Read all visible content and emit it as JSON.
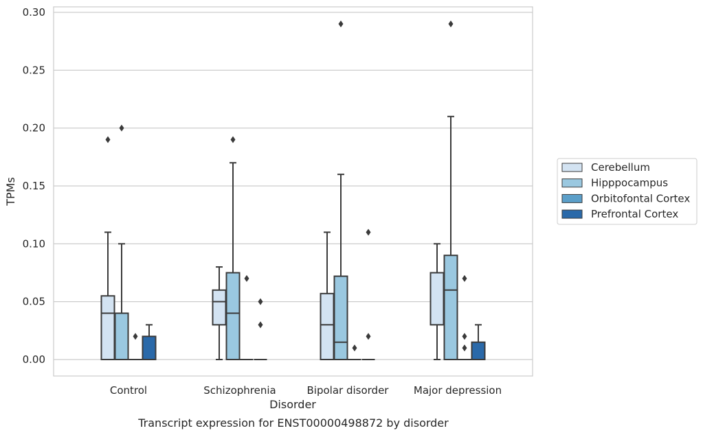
{
  "chart_data": {
    "type": "box",
    "caption": "Transcript expression for ENST00000498872 by disorder",
    "xlabel": "Disorder",
    "ylabel": "TPMs",
    "ylim": [
      -0.014,
      0.305
    ],
    "yticks": [
      "0.00",
      "0.05",
      "0.10",
      "0.15",
      "0.20",
      "0.25",
      "0.30"
    ],
    "grid": true,
    "legend_position": "right",
    "categories": [
      "Control",
      "Schizophrenia",
      "Bipolar disorder",
      "Major depression"
    ],
    "series": [
      {
        "name": "Cerebellum",
        "color": "#d3e3f2",
        "boxes": [
          {
            "whisker_low": 0.0,
            "q1": 0.0,
            "median": 0.04,
            "q3": 0.055,
            "whisker_high": 0.11,
            "outliers": [
              0.19
            ]
          },
          {
            "whisker_low": 0.0,
            "q1": 0.03,
            "median": 0.05,
            "q3": 0.06,
            "whisker_high": 0.08,
            "outliers": []
          },
          {
            "whisker_low": 0.0,
            "q1": 0.0,
            "median": 0.03,
            "q3": 0.057,
            "whisker_high": 0.11,
            "outliers": []
          },
          {
            "whisker_low": 0.0,
            "q1": 0.03,
            "median": 0.075,
            "q3": 0.075,
            "whisker_high": 0.1,
            "outliers": []
          }
        ]
      },
      {
        "name": "Hipppocampus",
        "color": "#9ac8e0",
        "boxes": [
          {
            "whisker_low": 0.0,
            "q1": 0.0,
            "median": 0.04,
            "q3": 0.04,
            "whisker_high": 0.1,
            "outliers": [
              0.2
            ]
          },
          {
            "whisker_low": 0.0,
            "q1": 0.0,
            "median": 0.04,
            "q3": 0.075,
            "whisker_high": 0.17,
            "outliers": [
              0.19
            ]
          },
          {
            "whisker_low": 0.0,
            "q1": 0.0,
            "median": 0.015,
            "q3": 0.072,
            "whisker_high": 0.16,
            "outliers": [
              0.29
            ]
          },
          {
            "whisker_low": 0.0,
            "q1": 0.0,
            "median": 0.06,
            "q3": 0.09,
            "whisker_high": 0.21,
            "outliers": [
              0.29
            ]
          }
        ]
      },
      {
        "name": "Orbitofontal Cortex",
        "color": "#5b9fc9",
        "boxes": [
          {
            "whisker_low": 0.0,
            "q1": 0.0,
            "median": 0.0,
            "q3": 0.0,
            "whisker_high": 0.0,
            "outliers": [
              0.02
            ]
          },
          {
            "whisker_low": 0.0,
            "q1": 0.0,
            "median": 0.0,
            "q3": 0.0,
            "whisker_high": 0.0,
            "outliers": [
              0.07
            ]
          },
          {
            "whisker_low": 0.0,
            "q1": 0.0,
            "median": 0.0,
            "q3": 0.0,
            "whisker_high": 0.0,
            "outliers": [
              0.01
            ]
          },
          {
            "whisker_low": 0.0,
            "q1": 0.0,
            "median": 0.0,
            "q3": 0.0,
            "whisker_high": 0.0,
            "outliers": [
              0.07,
              0.02,
              0.01
            ]
          }
        ]
      },
      {
        "name": "Prefrontal Cortex",
        "color": "#2a69a9",
        "boxes": [
          {
            "whisker_low": 0.0,
            "q1": 0.0,
            "median": 0.0,
            "q3": 0.02,
            "whisker_high": 0.03,
            "outliers": []
          },
          {
            "whisker_low": 0.0,
            "q1": 0.0,
            "median": 0.0,
            "q3": 0.0,
            "whisker_high": 0.0,
            "outliers": [
              0.05,
              0.03
            ]
          },
          {
            "whisker_low": 0.0,
            "q1": 0.0,
            "median": 0.0,
            "q3": 0.0,
            "whisker_high": 0.0,
            "outliers": [
              0.11,
              0.02
            ]
          },
          {
            "whisker_low": 0.0,
            "q1": 0.0,
            "median": 0.0,
            "q3": 0.015,
            "whisker_high": 0.03,
            "outliers": []
          }
        ]
      }
    ]
  }
}
